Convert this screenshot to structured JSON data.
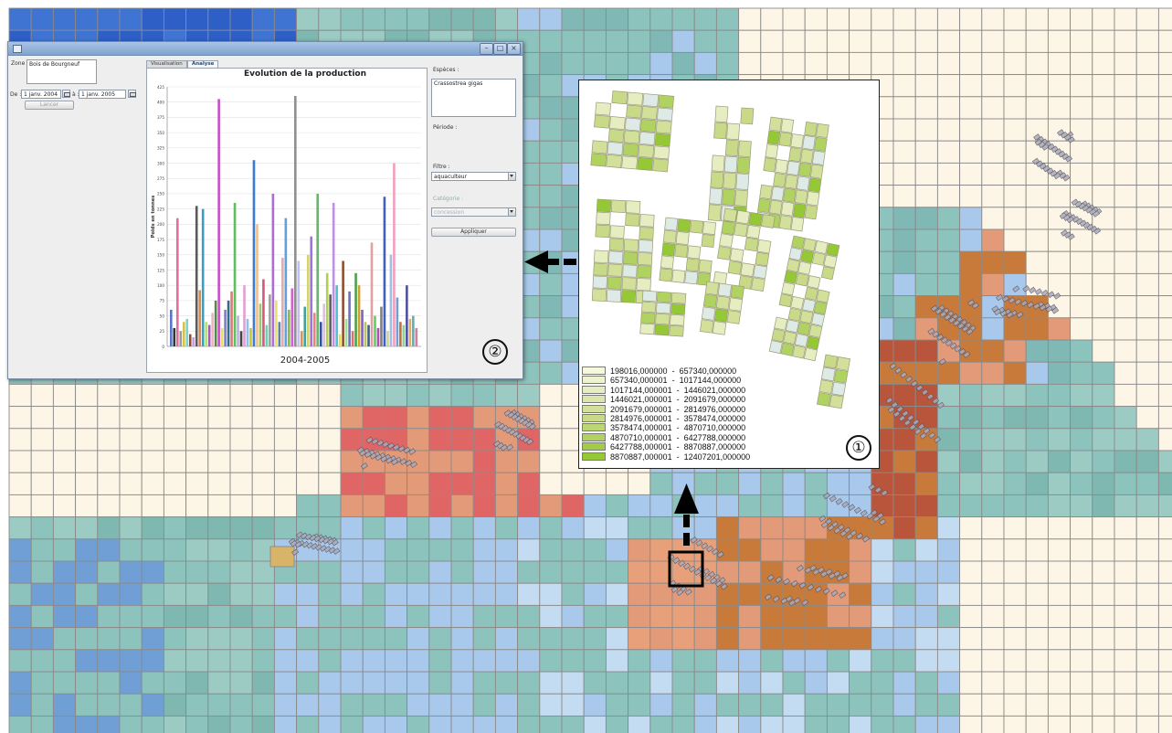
{
  "window": {
    "labels": {
      "zone": "Zone :",
      "from": "De :",
      "to": "à :",
      "species": "Espèces :",
      "period": "Période :",
      "filter": "Filtre :",
      "category": "Catégorie :"
    },
    "zone_value": "Bois de Bourgneuf",
    "date_from": "1 janv. 2004",
    "date_to": "1 janv. 2005",
    "left_button": "Lancer",
    "tabs": [
      "Visualisation",
      "Analyse"
    ],
    "species_value": "Crassostrea gigas",
    "filter_value": "aquaculteur",
    "category_value": "concession",
    "apply_button": "Appliquer"
  },
  "chart_data": {
    "type": "bar",
    "title": "Evolution de la production",
    "xlabel": "2004-2005",
    "ylabel": "Poids en tonnes",
    "ylim": [
      0,
      425
    ],
    "yticks": [
      "0",
      "25",
      "50",
      "75",
      "100",
      "125",
      "150",
      "175",
      "200",
      "225",
      "250",
      "275",
      "300",
      "325",
      "350",
      "375",
      "400",
      "425"
    ],
    "grid": true,
    "values": [
      60,
      30,
      210,
      25,
      40,
      45,
      20,
      15,
      230,
      92,
      225,
      40,
      35,
      55,
      75,
      405,
      30,
      60,
      75,
      90,
      235,
      50,
      25,
      100,
      45,
      30,
      305,
      200,
      70,
      110,
      35,
      85,
      250,
      75,
      40,
      145,
      210,
      60,
      95,
      410,
      140,
      25,
      65,
      150,
      180,
      55,
      250,
      40,
      70,
      120,
      85,
      235,
      100,
      20,
      140,
      45,
      90,
      25,
      120,
      100,
      60,
      40,
      35,
      170,
      50,
      30,
      65,
      245,
      25,
      150,
      300,
      80,
      40,
      35,
      100,
      45,
      50,
      30
    ],
    "colors": [
      "#5b78c8",
      "#333333",
      "#e06fa0",
      "#9b9b9b",
      "#d4c24a",
      "#7bd3d8",
      "#8f4d2f",
      "#c8a0e0",
      "#5a5a5a",
      "#e08a48",
      "#3a9fbf",
      "#b4e07c",
      "#a45ab8",
      "#f0b3c6",
      "#4f8d3c",
      "#c84fc8",
      "#e6e06a",
      "#7d7dd4",
      "#2d6e8f",
      "#d87c7c",
      "#5fbf5f",
      "#bdb0e6",
      "#444444",
      "#e0a0d0",
      "#8ac3e8",
      "#c8c830",
      "#3c7bd4",
      "#f0c090",
      "#9ac870",
      "#d45a7c",
      "#6fd0b0",
      "#a0a0a0",
      "#b06ad4",
      "#e8e070",
      "#6080a0",
      "#d8b0b0",
      "#5fa0e0",
      "#80c040",
      "#d060d0",
      "#909090",
      "#c0c0f0",
      "#e09050",
      "#40a0a0",
      "#d4d46a",
      "#a070e0",
      "#f08080",
      "#70b070",
      "#3050a0",
      "#e0c0e0",
      "#b0d050",
      "#606060",
      "#c090e0",
      "#50c0d0",
      "#e0e050",
      "#905030",
      "#a0e0a0",
      "#7070c0",
      "#e07070",
      "#50a050",
      "#d0a030",
      "#8060d0",
      "#c0c060",
      "#406080",
      "#e0a0a0",
      "#60d060",
      "#b050b0",
      "#808080",
      "#4060c0",
      "#d0d090",
      "#a0c0e0",
      "#f0a0c0",
      "#70a0d0",
      "#c07040",
      "#90d090",
      "#5050a0",
      "#e0b060",
      "#60b0b0",
      "#d080a0"
    ]
  },
  "badges": {
    "chart_window": "②",
    "inset_map": "①"
  },
  "inset_legend": {
    "ranges": [
      {
        "low": "198016,000000",
        "high": "657340,000000",
        "color": "#f5f8dc"
      },
      {
        "low": "657340,000001",
        "high": "1017144,000000",
        "color": "#eef3cf"
      },
      {
        "low": "1017144,000001",
        "high": "1446021,000000",
        "color": "#e6edc0"
      },
      {
        "low": "1446021,000001",
        "high": "2091679,000000",
        "color": "#dce6aa"
      },
      {
        "low": "2091679,000001",
        "high": "2814976,000000",
        "color": "#d2e09a"
      },
      {
        "low": "2814976,000001",
        "high": "3578474,000000",
        "color": "#c8da88"
      },
      {
        "low": "3578474,000001",
        "high": "4870710,000000",
        "color": "#bcd674"
      },
      {
        "low": "4870710,000001",
        "high": "6427788,000000",
        "color": "#b0d260"
      },
      {
        "low": "6427788,000001",
        "high": "8870887,000000",
        "color": "#a2cc48"
      },
      {
        "low": "8870887,000001",
        "high": "12407201,000000",
        "color": "#94c834"
      }
    ]
  },
  "colors": {
    "deep_blue": "#2e5fc7",
    "teal": "#8cc3bd",
    "light_blue": "#a9c9ec",
    "cream": "#fdf6e6",
    "salmon": "#e39a78",
    "red": "#e06666",
    "rust": "#c87a3a"
  }
}
